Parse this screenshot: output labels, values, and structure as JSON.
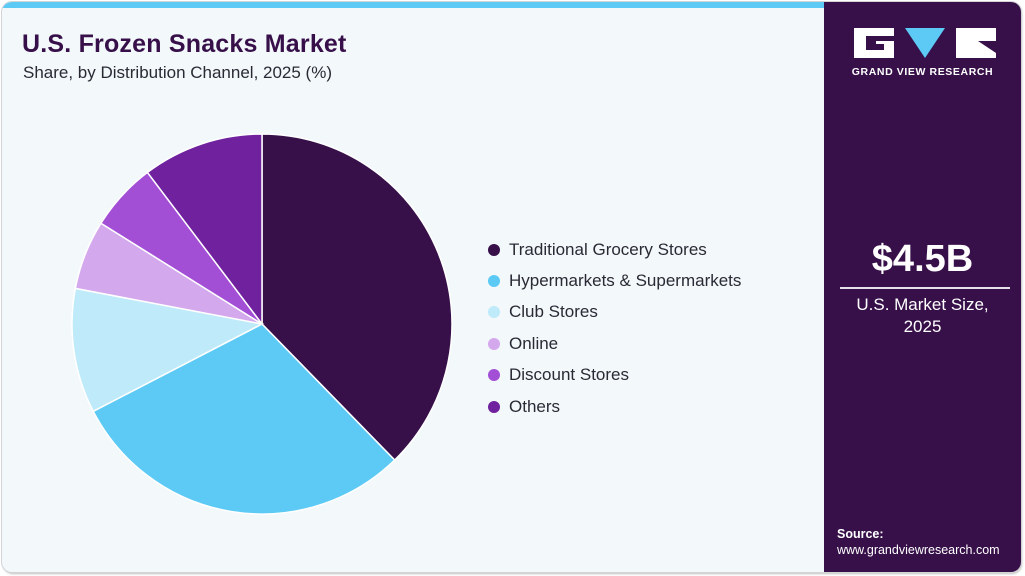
{
  "header": {
    "title": "U.S. Frozen Snacks Market",
    "subtitle": "Share, by Distribution Channel, 2025 (%)"
  },
  "colors": {
    "accent_bar": "#5ccaf5",
    "side_panel": "#37104a",
    "background": "#f3f8fb"
  },
  "chart_data": {
    "type": "pie",
    "title": "U.S. Frozen Snacks Market",
    "subtitle": "Share, by Distribution Channel, 2025 (%)",
    "categories": [
      "Traditional Grocery Stores",
      "Hypermarkets & Supermarkets",
      "Club Stores",
      "Online",
      "Discount Stores",
      "Others"
    ],
    "values": [
      37.7,
      29.7,
      10.6,
      5.9,
      5.8,
      10.3
    ],
    "colors": [
      "#37104a",
      "#5ccaf5",
      "#bfeaf9",
      "#d4a8ec",
      "#a24fd6",
      "#6f219e"
    ],
    "start_angle": "12 o'clock",
    "direction": "clockwise",
    "legend_position": "right"
  },
  "legend": {
    "items": [
      {
        "label": "Traditional Grocery Stores",
        "color": "#37104a"
      },
      {
        "label": "Hypermarkets & Supermarkets",
        "color": "#5ccaf5"
      },
      {
        "label": "Club Stores",
        "color": "#bfeaf9"
      },
      {
        "label": "Online",
        "color": "#d4a8ec"
      },
      {
        "label": "Discount Stores",
        "color": "#a24fd6"
      },
      {
        "label": "Others",
        "color": "#6f219e"
      }
    ]
  },
  "sidebar": {
    "logo_text": "GRAND VIEW RESEARCH",
    "market_value": "$4.5B",
    "market_label_line1": "U.S. Market Size,",
    "market_label_line2": "2025",
    "source_label": "Source:",
    "source_url": "www.grandviewresearch.com"
  }
}
